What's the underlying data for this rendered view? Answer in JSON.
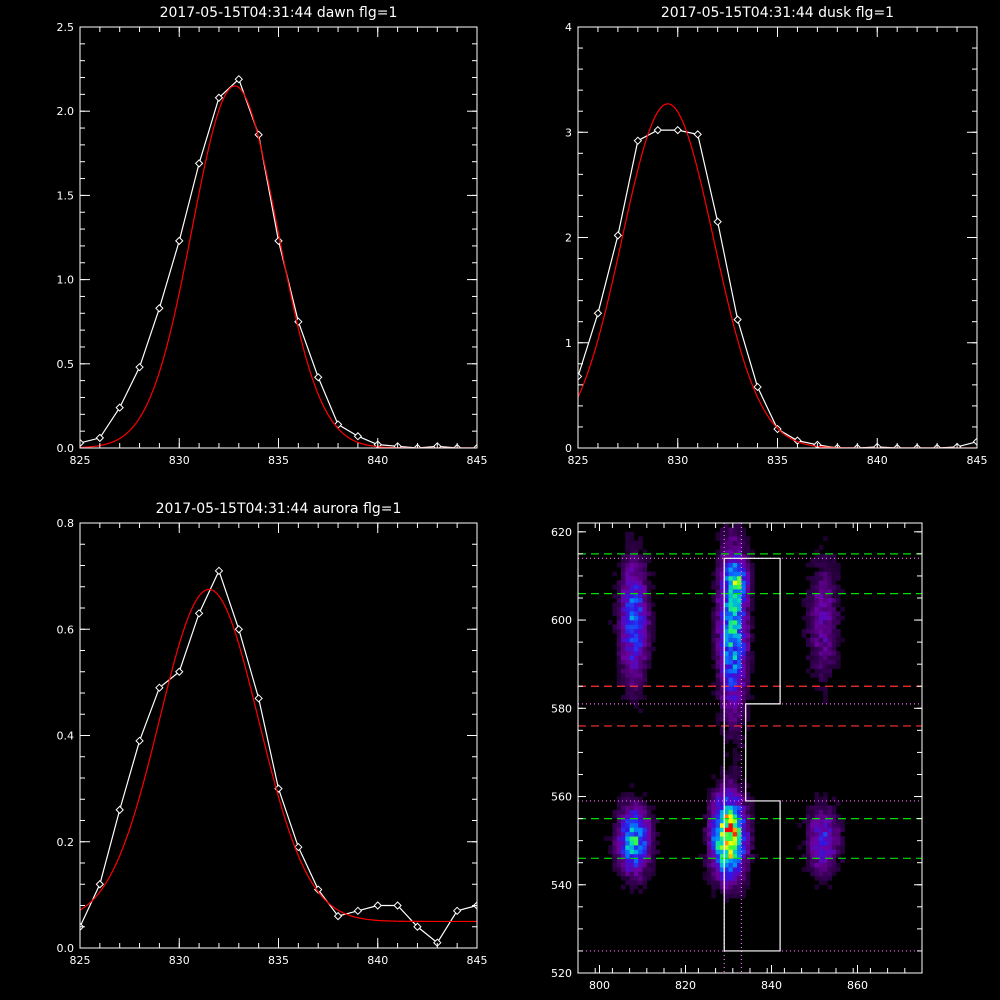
{
  "chart_data": [
    {
      "type": "line",
      "title": "2017-05-15T04:31:44 dawn flg=1",
      "xlim": [
        825,
        845
      ],
      "ylim": [
        0,
        2.5
      ],
      "xticks": [
        825,
        830,
        835,
        840,
        845
      ],
      "yticks": [
        0,
        0.5,
        1.0,
        1.5,
        2.0,
        2.5
      ],
      "ytick_labels": [
        "0.0",
        "0.5",
        "1.0",
        "1.5",
        "2.0",
        "2.5"
      ],
      "series": [
        {
          "kind": "measured",
          "color": "#ffffff",
          "markers": "diamond",
          "x": [
            825,
            826,
            827,
            828,
            829,
            830,
            831,
            832,
            833,
            834,
            835,
            836,
            837,
            838,
            839,
            840,
            841,
            842,
            843,
            844,
            845
          ],
          "y": [
            0.03,
            0.06,
            0.24,
            0.48,
            0.83,
            1.23,
            1.69,
            2.08,
            2.19,
            1.86,
            1.23,
            0.75,
            0.42,
            0.14,
            0.07,
            0.02,
            0.01,
            0.0,
            0.01,
            0.0,
            0.0
          ]
        },
        {
          "kind": "fit",
          "color": "#ff0000",
          "function": "gaussian",
          "amplitude": 2.15,
          "center": 832.8,
          "sigma": 2.15,
          "offset": 0.0
        }
      ]
    },
    {
      "type": "line",
      "title": "2017-05-15T04:31:44 dusk flg=1",
      "xlim": [
        825,
        845
      ],
      "ylim": [
        0,
        4
      ],
      "xticks": [
        825,
        830,
        835,
        840,
        845
      ],
      "yticks": [
        0,
        1,
        2,
        3,
        4
      ],
      "ytick_labels": [
        "0",
        "1",
        "2",
        "3",
        "4"
      ],
      "series": [
        {
          "kind": "measured",
          "color": "#ffffff",
          "markers": "diamond",
          "x": [
            825,
            826,
            827,
            828,
            829,
            830,
            831,
            832,
            833,
            834,
            835,
            836,
            837,
            838,
            839,
            840,
            841,
            842,
            843,
            844,
            845
          ],
          "y": [
            0.68,
            1.28,
            2.02,
            2.92,
            3.02,
            3.02,
            2.98,
            2.15,
            1.22,
            0.58,
            0.18,
            0.07,
            0.03,
            0.0,
            0.0,
            0.01,
            0.0,
            0.0,
            0.0,
            0.01,
            0.06
          ]
        },
        {
          "kind": "fit",
          "color": "#ff0000",
          "function": "gaussian",
          "amplitude": 3.27,
          "center": 829.5,
          "sigma": 2.3,
          "offset": 0.0
        }
      ]
    },
    {
      "type": "line",
      "title": "2017-05-15T04:31:44 aurora flg=1",
      "xlim": [
        825,
        845
      ],
      "ylim": [
        0,
        0.8
      ],
      "xticks": [
        825,
        830,
        835,
        840,
        845
      ],
      "yticks": [
        0,
        0.2,
        0.4,
        0.6,
        0.8
      ],
      "ytick_labels": [
        "0.0",
        "0.2",
        "0.4",
        "0.6",
        "0.8"
      ],
      "series": [
        {
          "kind": "measured",
          "color": "#ffffff",
          "markers": "diamond",
          "x": [
            825,
            826,
            827,
            828,
            829,
            830,
            831,
            832,
            833,
            834,
            835,
            836,
            837,
            838,
            839,
            840,
            841,
            842,
            843,
            844,
            845
          ],
          "y": [
            0.04,
            0.12,
            0.26,
            0.39,
            0.49,
            0.52,
            0.63,
            0.71,
            0.6,
            0.47,
            0.3,
            0.19,
            0.11,
            0.06,
            0.07,
            0.08,
            0.08,
            0.04,
            0.01,
            0.07,
            0.08
          ]
        },
        {
          "kind": "fit",
          "color": "#ff0000",
          "function": "gaussian",
          "amplitude": 0.625,
          "center": 831.5,
          "sigma": 2.5,
          "offset": 0.05
        }
      ]
    },
    {
      "type": "heatmap",
      "title": "",
      "xlim": [
        795,
        875
      ],
      "ylim": [
        520,
        622
      ],
      "xticks": [
        800,
        820,
        840,
        860
      ],
      "yticks": [
        520,
        540,
        560,
        580,
        600,
        620
      ],
      "colormap": "rainbow",
      "blobs": [
        {
          "x": 808,
          "y": 600,
          "sx": 2.2,
          "sy": 9,
          "peak": 0.42
        },
        {
          "x": 808,
          "y": 550,
          "sx": 2.5,
          "sy": 5,
          "peak": 0.55
        },
        {
          "x": 831,
          "y": 598,
          "sx": 2.2,
          "sy": 12,
          "peak": 0.55
        },
        {
          "x": 832,
          "y": 609,
          "sx": 1.8,
          "sy": 3,
          "peak": 0.3
        },
        {
          "x": 830,
          "y": 551,
          "sx": 2.5,
          "sy": 6,
          "peak": 0.95
        },
        {
          "x": 852,
          "y": 600,
          "sx": 2.5,
          "sy": 9,
          "peak": 0.2
        },
        {
          "x": 852,
          "y": 550,
          "sx": 2.5,
          "sy": 5,
          "peak": 0.32
        }
      ],
      "vlines": [
        {
          "x": 829,
          "color": "#ff66ff",
          "style": "dotted"
        },
        {
          "x": 833,
          "color": "#ff66ff",
          "style": "dotted"
        }
      ],
      "hlines": [
        {
          "y": 615,
          "color": "#00dd00",
          "style": "dashed"
        },
        {
          "y": 606,
          "color": "#00dd00",
          "style": "dashed"
        },
        {
          "y": 585,
          "color": "#ff3333",
          "style": "dashed"
        },
        {
          "y": 576,
          "color": "#ff3333",
          "style": "dashed"
        },
        {
          "y": 555,
          "color": "#00dd00",
          "style": "dashed"
        },
        {
          "y": 546,
          "color": "#00dd00",
          "style": "dashed"
        },
        {
          "y": 614,
          "color": "#ff66ff",
          "style": "dotted"
        },
        {
          "y": 581,
          "color": "#ff66ff",
          "style": "dotted"
        },
        {
          "y": 559,
          "color": "#ff66ff",
          "style": "dotted"
        },
        {
          "y": 525,
          "color": "#ff66ff",
          "style": "dotted"
        }
      ],
      "outline": {
        "color": "#ffffff",
        "points": [
          [
            829,
            614
          ],
          [
            842,
            614
          ],
          [
            842,
            581
          ],
          [
            834,
            581
          ],
          [
            834,
            559
          ],
          [
            842,
            559
          ],
          [
            842,
            525
          ],
          [
            829,
            525
          ]
        ]
      }
    }
  ]
}
